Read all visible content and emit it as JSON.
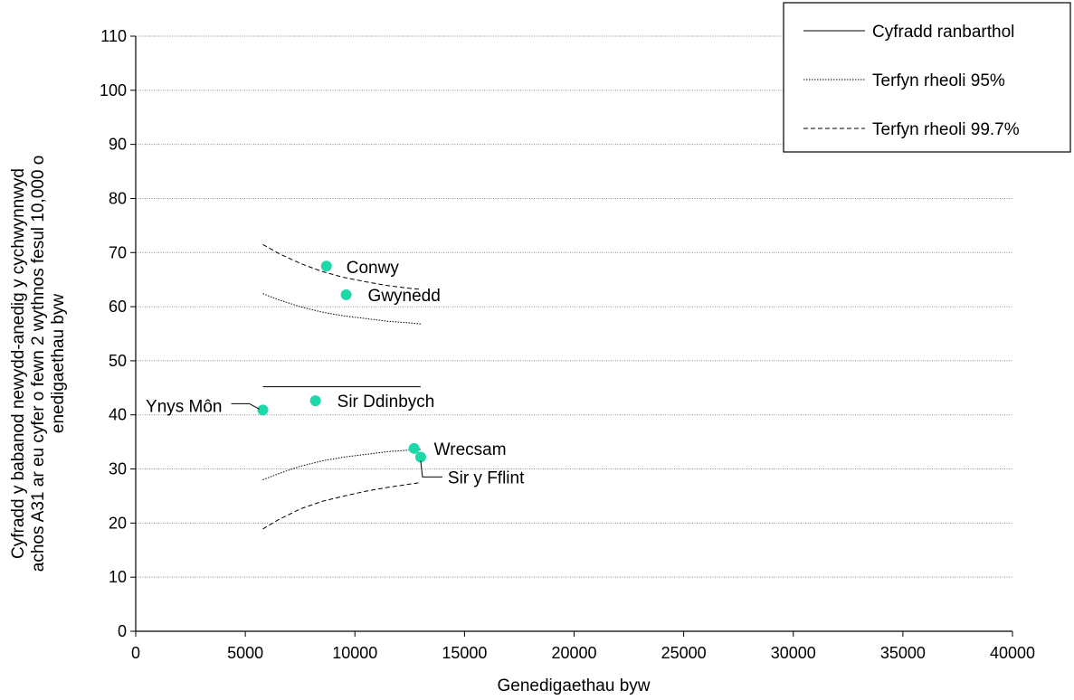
{
  "chart_data": {
    "type": "scatter",
    "title": "",
    "xlabel": "Genedigaethau byw",
    "ylabel_lines": [
      "Cyfradd y babanod newydd-anedig y cychwynnwyd",
      "achos A31 ar eu cyfer o fewn 2 wythnos fesul 10,000 o",
      "enedigaethau byw"
    ],
    "xlim": [
      0,
      40000
    ],
    "ylim": [
      0,
      110
    ],
    "xticks": [
      0,
      5000,
      10000,
      15000,
      20000,
      25000,
      30000,
      35000,
      40000
    ],
    "yticks": [
      0,
      10,
      20,
      30,
      40,
      50,
      60,
      70,
      80,
      90,
      100,
      110
    ],
    "grid": "horizontal dotted",
    "points_color": "#1dd8a8",
    "points": [
      {
        "label": "Conwy",
        "x": 8700,
        "y": 67.5
      },
      {
        "label": "Gwynedd",
        "x": 9600,
        "y": 62.2
      },
      {
        "label": "Ynys Môn",
        "x": 5800,
        "y": 40.9
      },
      {
        "label": "Sir Ddinbych",
        "x": 8200,
        "y": 42.6
      },
      {
        "label": "Wrecsam",
        "x": 12700,
        "y": 33.8
      },
      {
        "label": "Sir y Fflint",
        "x": 13000,
        "y": 32.2
      }
    ],
    "lines": [
      {
        "name": "Cyfradd ranbarthol",
        "style": "solid",
        "x": [
          5800,
          13000
        ],
        "y": [
          45.2,
          45.2
        ]
      },
      {
        "name": "Terfyn rheoli 95%",
        "style": "dotted",
        "x": [
          5800,
          6500,
          7500,
          8500,
          9500,
          10500,
          11500,
          12500,
          13000
        ],
        "y": [
          62.4,
          61.3,
          60.0,
          59.0,
          58.3,
          57.8,
          57.3,
          57.0,
          56.8
        ]
      },
      {
        "name": "Terfyn rheoli 95%",
        "style": "dotted",
        "x": [
          5800,
          6500,
          7500,
          8500,
          9500,
          10500,
          11500,
          12500,
          13000
        ],
        "y": [
          28.0,
          29.1,
          30.5,
          31.5,
          32.2,
          32.7,
          33.2,
          33.5,
          33.6
        ]
      },
      {
        "name": "Terfyn rheoli 99.7%",
        "style": "dashed",
        "x": [
          5800,
          6500,
          7500,
          8500,
          9500,
          10500,
          11500,
          12500,
          13000
        ],
        "y": [
          71.5,
          69.9,
          68.0,
          66.5,
          65.4,
          64.6,
          63.9,
          63.4,
          63.2
        ]
      },
      {
        "name": "Terfyn rheoli 99.7%",
        "style": "dashed",
        "x": [
          5800,
          6500,
          7500,
          8500,
          9500,
          10500,
          11500,
          12500,
          13000
        ],
        "y": [
          18.9,
          20.6,
          22.6,
          24.0,
          25.0,
          25.9,
          26.6,
          27.2,
          27.5
        ]
      }
    ],
    "legend": {
      "position": "top-right",
      "entries": [
        {
          "label": "Cyfradd ranbarthol",
          "style": "solid"
        },
        {
          "label": "Terfyn rheoli 95%",
          "style": "dotted"
        },
        {
          "label": "Terfyn rheoli 99.7%",
          "style": "dashed"
        }
      ]
    }
  }
}
